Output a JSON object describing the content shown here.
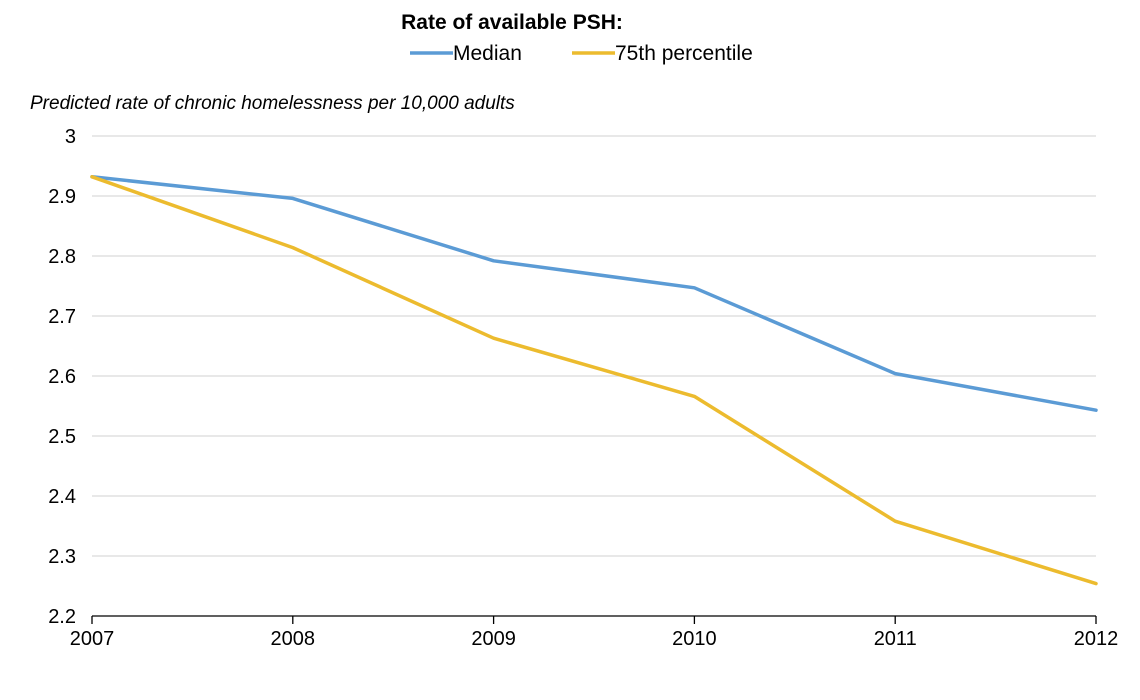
{
  "legend": {
    "title": "Rate of available PSH:"
  },
  "axis_caption": "Predicted rate of chronic homelessness per 10,000 adults",
  "chart_data": {
    "type": "line",
    "title": "",
    "xlabel": "",
    "ylabel": "Predicted rate of chronic homelessness per 10,000 adults",
    "x": [
      "2007",
      "2008",
      "2009",
      "2010",
      "2011",
      "2012"
    ],
    "ylim": [
      2.2,
      3.0
    ],
    "yticks": [
      "2.2",
      "2.3",
      "2.4",
      "2.5",
      "2.6",
      "2.7",
      "2.8",
      "2.9",
      "3"
    ],
    "grid": "horizontal",
    "legend_position": "top-center",
    "series": [
      {
        "name": "Median",
        "color": "#5B9BD5",
        "values": [
          2.932,
          2.896,
          2.792,
          2.747,
          2.604,
          2.543
        ]
      },
      {
        "name": "75th percentile",
        "color": "#ECBB2E",
        "values": [
          2.932,
          2.814,
          2.663,
          2.566,
          2.358,
          2.254
        ]
      }
    ]
  }
}
